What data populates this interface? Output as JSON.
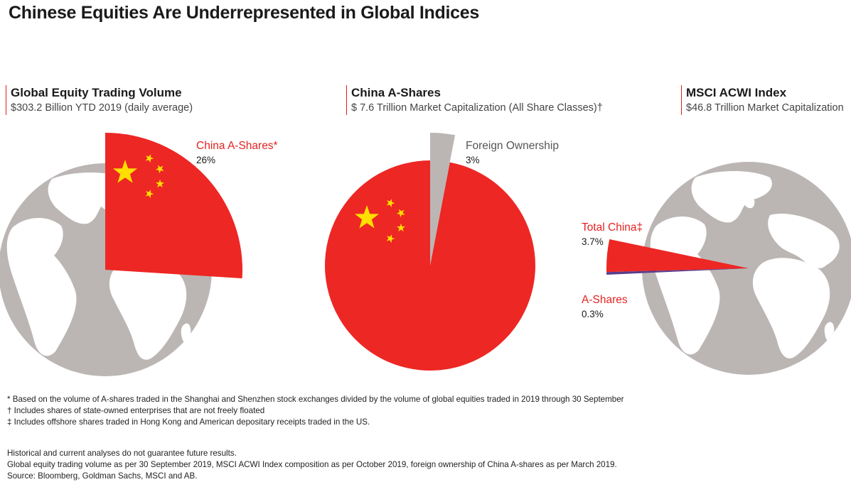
{
  "title": "Chinese Equities Are Underrepresented in Global Indices",
  "colors": {
    "red": "#ED2724",
    "grey": "#BBB6B4",
    "star": "#FFDE00",
    "purple": "#5B3C8C",
    "globe_land": "#FFFFFF"
  },
  "panels": [
    {
      "heading": "Global Equity Trading Volume",
      "subheading": "$303.2 Billion YTD 2019 (daily average)"
    },
    {
      "heading": "China A-Shares",
      "subheading": "$ 7.6 Trillion Market Capitalization (All Share Classes)†"
    },
    {
      "heading": "MSCI ACWI Index",
      "subheading": "$46.8 Trillion Market Capitalization"
    }
  ],
  "chart_data": [
    {
      "type": "pie",
      "title": "Global Equity Trading Volume",
      "subtitle": "$303.2 Billion YTD 2019 (daily average)",
      "slices": [
        {
          "name": "China A-Shares*",
          "label": "26%",
          "value": 26
        }
      ]
    },
    {
      "type": "pie",
      "title": "China A-Shares",
      "subtitle": "$ 7.6 Trillion Market Capitalization (All Share Classes)†",
      "slices": [
        {
          "name": "Foreign Ownership",
          "label": "3%",
          "value": 3
        },
        {
          "name": "",
          "label": "",
          "value": 97
        }
      ]
    },
    {
      "type": "pie",
      "title": "MSCI ACWI Index",
      "subtitle": "$46.8 Trillion Market Capitalization",
      "slices": [
        {
          "name": "Total China‡",
          "label": "3.7%",
          "value": 3.7
        },
        {
          "name": "A-Shares",
          "label": "0.3%",
          "value": 0.3
        }
      ]
    }
  ],
  "footnotes": [
    "* Based on the volume of A-shares traded in the Shanghai and Shenzhen stock exchanges divided by the volume of global equities traded in 2019 through 30 September",
    "† Includes shares of state-owned enterprises that are not freely floated",
    "‡ Includes offshore shares traded in Hong Kong and American depositary receipts traded in the US."
  ],
  "disclaimers": [
    "Historical and current analyses do not guarantee future results.",
    "Global equity trading volume as per 30 September 2019, MSCI ACWI Index composition as per October 2019, foreign ownership of China A-shares as per March 2019.",
    "Source: Bloomberg, Goldman Sachs, MSCI and AB."
  ]
}
